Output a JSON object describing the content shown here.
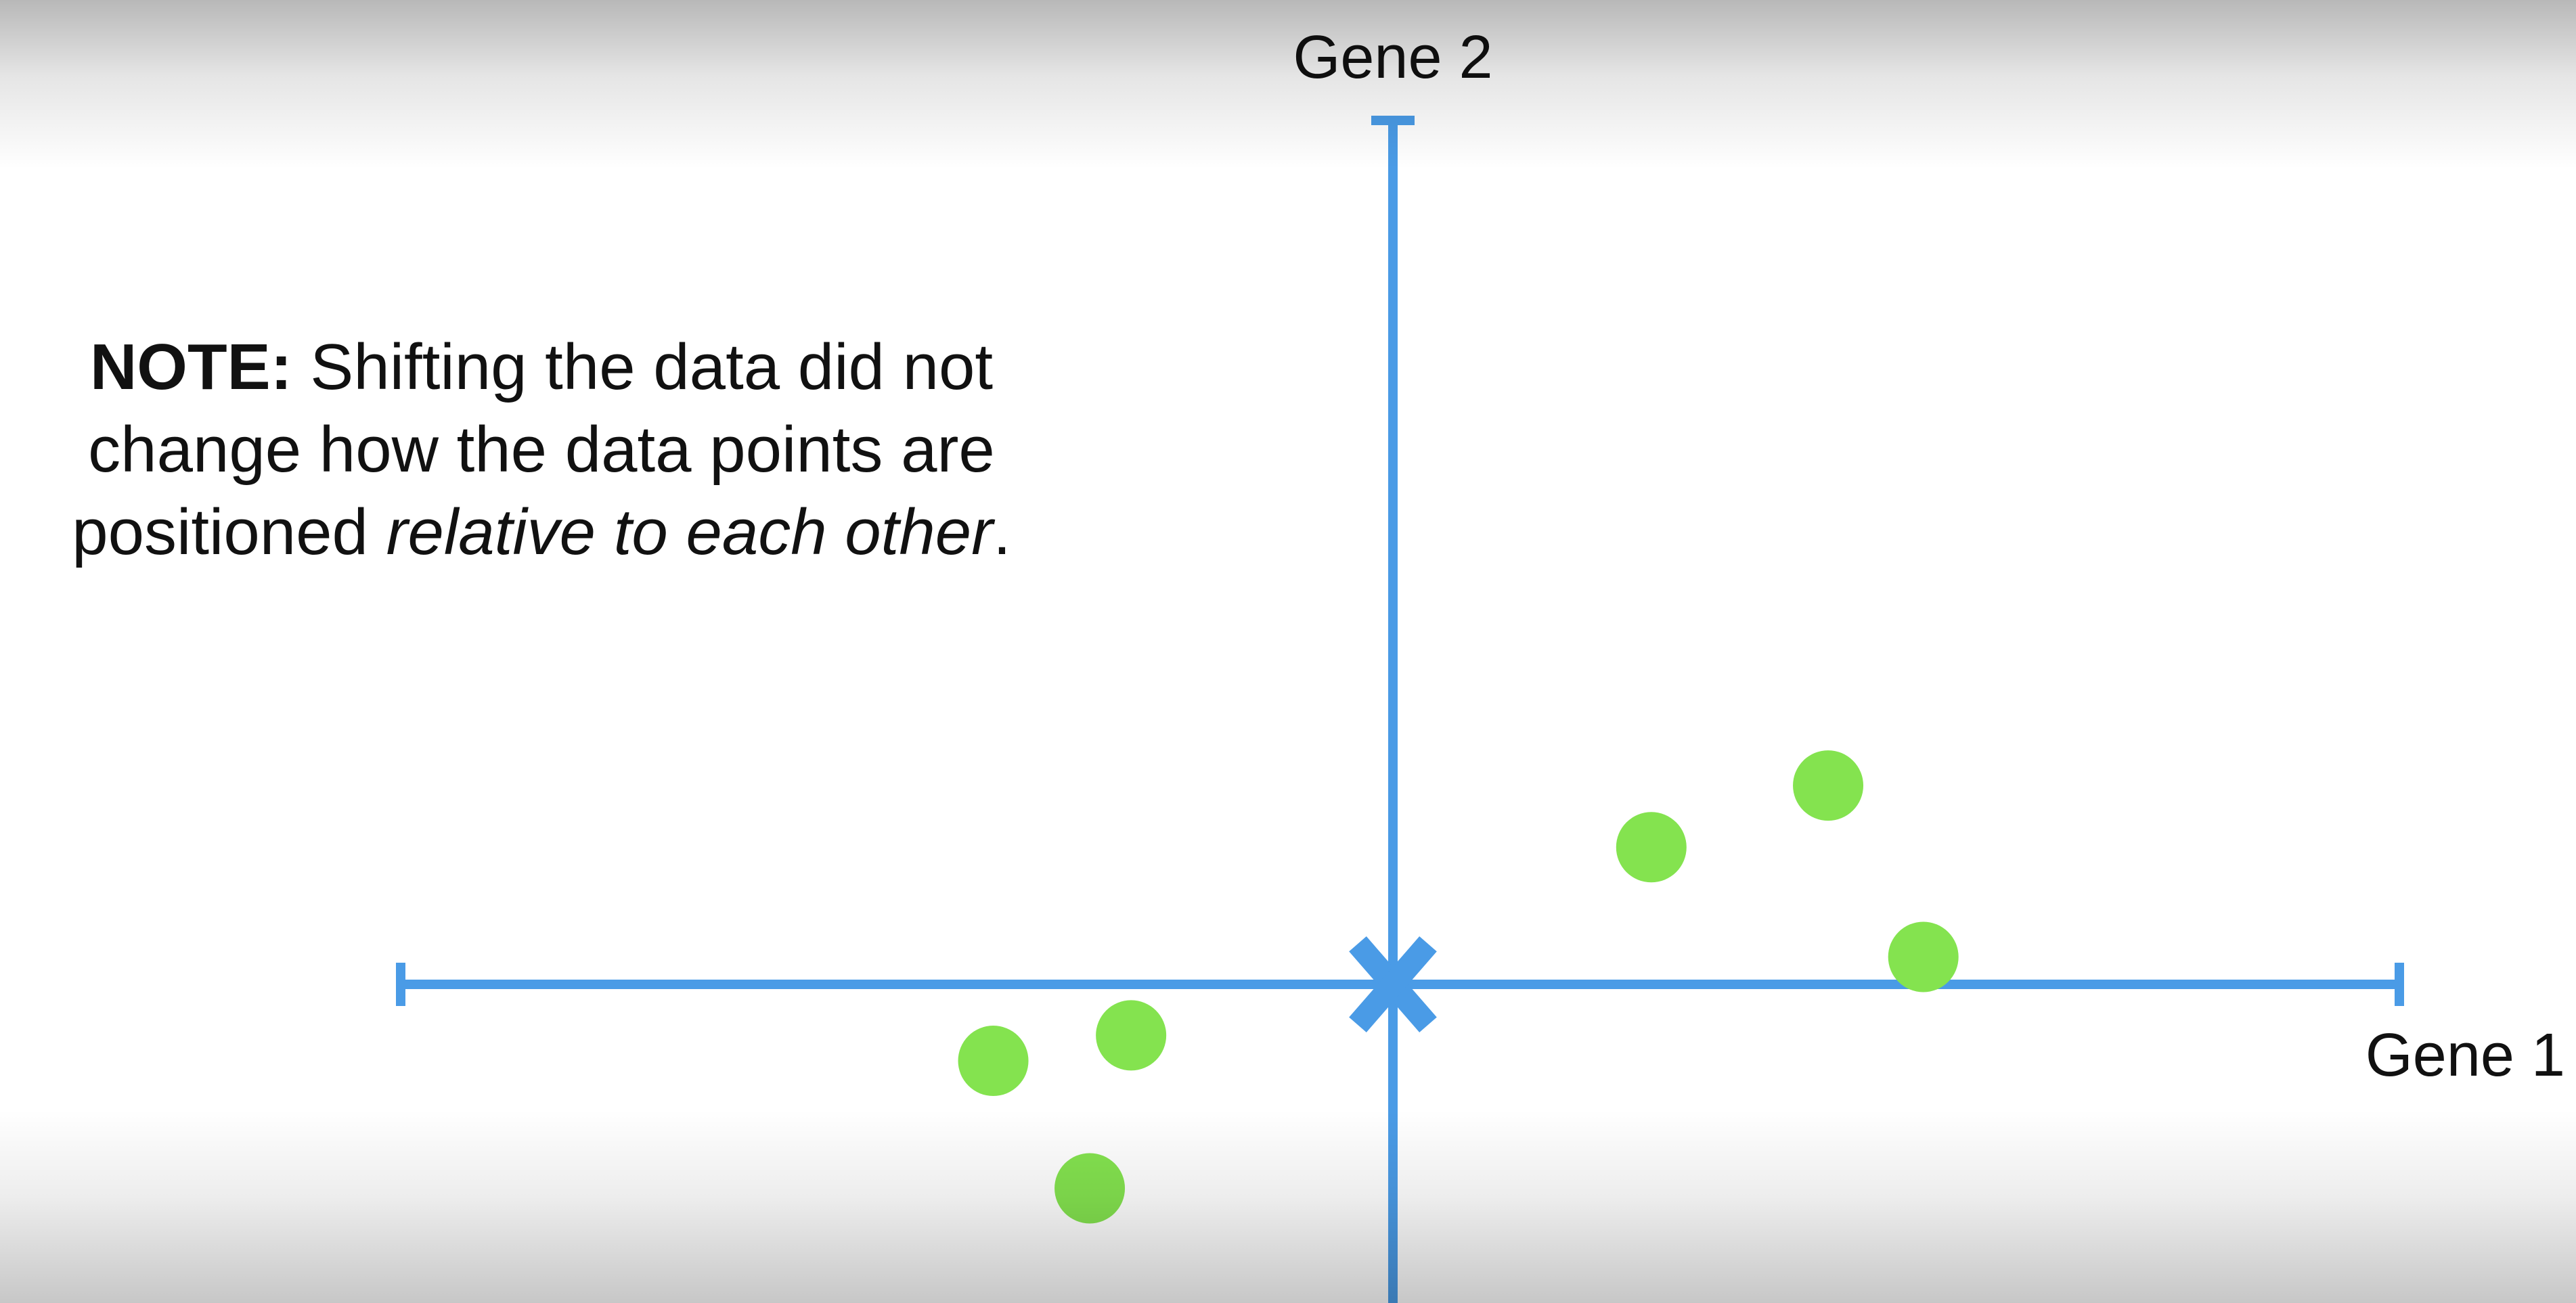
{
  "note": {
    "bold": "NOTE:",
    "text_before": "Shifting the data did not change how the data points are positioned",
    "italic": "relative to each other",
    "text_after": "."
  },
  "colors": {
    "axis": "#4a9be6",
    "points": "#84e34f",
    "text": "#111111"
  },
  "chart_data": {
    "type": "scatter",
    "xlabel": "Gene 1",
    "ylabel": "Gene 2",
    "xlim": [
      -7.2,
      7.4
    ],
    "ylim": [
      -2.5,
      6.3
    ],
    "origin_marker": "X",
    "series": [
      {
        "points": [
          {
            "x": 1.9,
            "y": 1.0
          },
          {
            "x": 3.2,
            "y": 1.45
          },
          {
            "x": 3.9,
            "y": 0.2
          },
          {
            "x": -2.9,
            "y": -0.6
          },
          {
            "x": -1.9,
            "y": -0.4
          },
          {
            "x": -2.2,
            "y": -1.6
          }
        ]
      }
    ],
    "grid": false
  }
}
